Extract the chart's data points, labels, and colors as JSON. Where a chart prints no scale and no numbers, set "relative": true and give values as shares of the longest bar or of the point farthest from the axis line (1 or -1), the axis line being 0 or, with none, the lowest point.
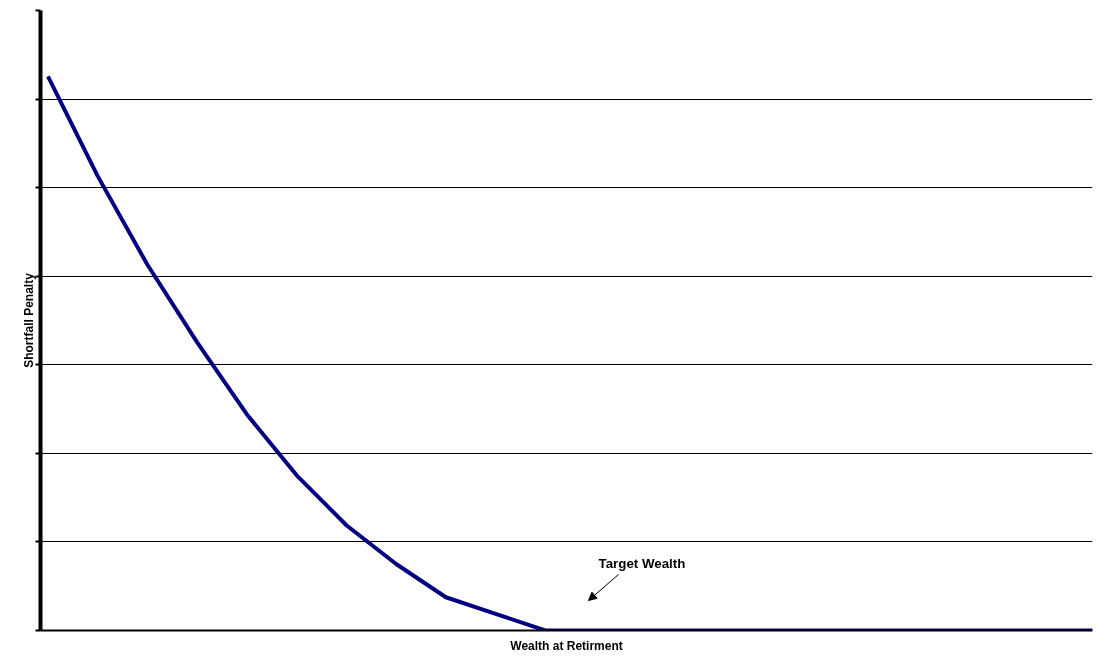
{
  "chart_data": {
    "type": "line",
    "relative": true,
    "xlabel": "Wealth at Retirment",
    "ylabel": "Shortfall Penalty",
    "grid": "y",
    "marker": "none",
    "line_style": "solid",
    "categories": [
      null,
      null,
      null,
      null,
      null,
      null,
      null,
      null,
      null,
      null,
      null,
      null,
      null,
      null,
      null,
      null,
      null,
      null,
      null,
      null,
      null,
      null
    ],
    "series": [
      {
        "color": "#000080",
        "values": [
          1.0,
          0.82,
          0.66,
          0.52,
          0.39,
          0.28,
          0.19,
          0.12,
          0.06,
          0.03,
          0.0,
          0,
          0,
          0,
          0,
          0,
          0,
          0,
          0,
          0,
          0,
          0
        ]
      }
    ],
    "annotations": [
      "Target Wealth"
    ]
  }
}
